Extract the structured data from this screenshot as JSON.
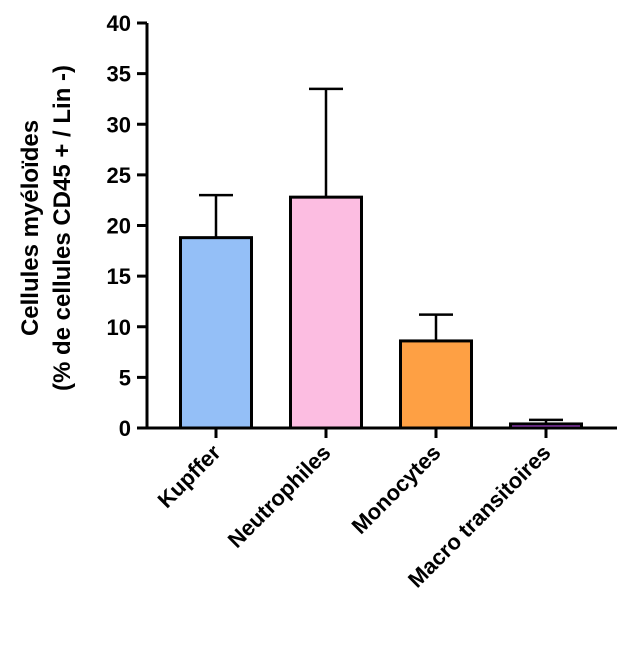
{
  "chart_data": {
    "type": "bar",
    "categories": [
      "Kupffer",
      "Neutrophiles",
      "Monocytes",
      "Macro transitoires"
    ],
    "values": [
      18.8,
      22.8,
      8.6,
      0.4
    ],
    "errors": [
      4.2,
      10.7,
      2.6,
      0.4
    ],
    "colors": [
      "#94bff7",
      "#fcbde1",
      "#fea044",
      "#b84de8"
    ],
    "ylabel_line1": "Cellules myéloïdes",
    "ylabel_line2": "(% de cellules CD45 + / Lin -)",
    "ylim": [
      0,
      40
    ],
    "yticks": [
      "0",
      "5",
      "10",
      "15",
      "20",
      "25",
      "30",
      "35",
      "40"
    ],
    "grid": false,
    "legend": "none"
  }
}
